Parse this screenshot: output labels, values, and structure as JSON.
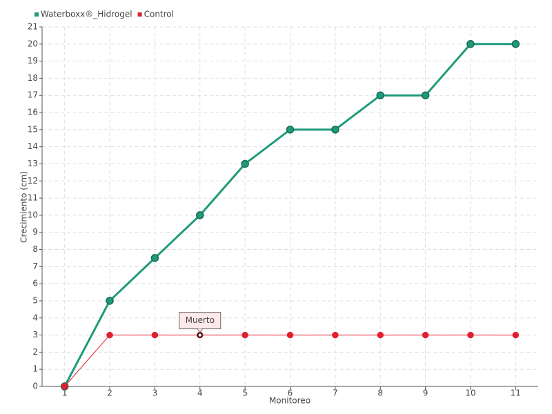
{
  "chart_data": {
    "type": "line",
    "x_label": "Monitoreo",
    "y_label": "Crecimiento (cm)",
    "categories": [
      "1",
      "2",
      "3",
      "4",
      "5",
      "6",
      "7",
      "8",
      "9",
      "10",
      "11"
    ],
    "series": [
      {
        "name": "Waterboxx®_Hidrogel",
        "color": "#1f9a7a",
        "values": [
          0,
          5,
          7.5,
          10,
          13,
          15,
          15,
          17,
          17,
          20,
          20
        ]
      },
      {
        "name": "Control",
        "color": "#e0202e",
        "values": [
          0,
          3,
          3,
          3,
          3,
          3,
          3,
          3,
          3,
          3,
          3
        ]
      }
    ],
    "ylim": [
      0,
      21
    ],
    "yticks": [
      0,
      1,
      2,
      3,
      4,
      5,
      6,
      7,
      8,
      9,
      10,
      11,
      12,
      13,
      14,
      15,
      16,
      17,
      18,
      19,
      20,
      21
    ],
    "grid": true,
    "legend": "top-left",
    "annotation": "Muerto"
  }
}
